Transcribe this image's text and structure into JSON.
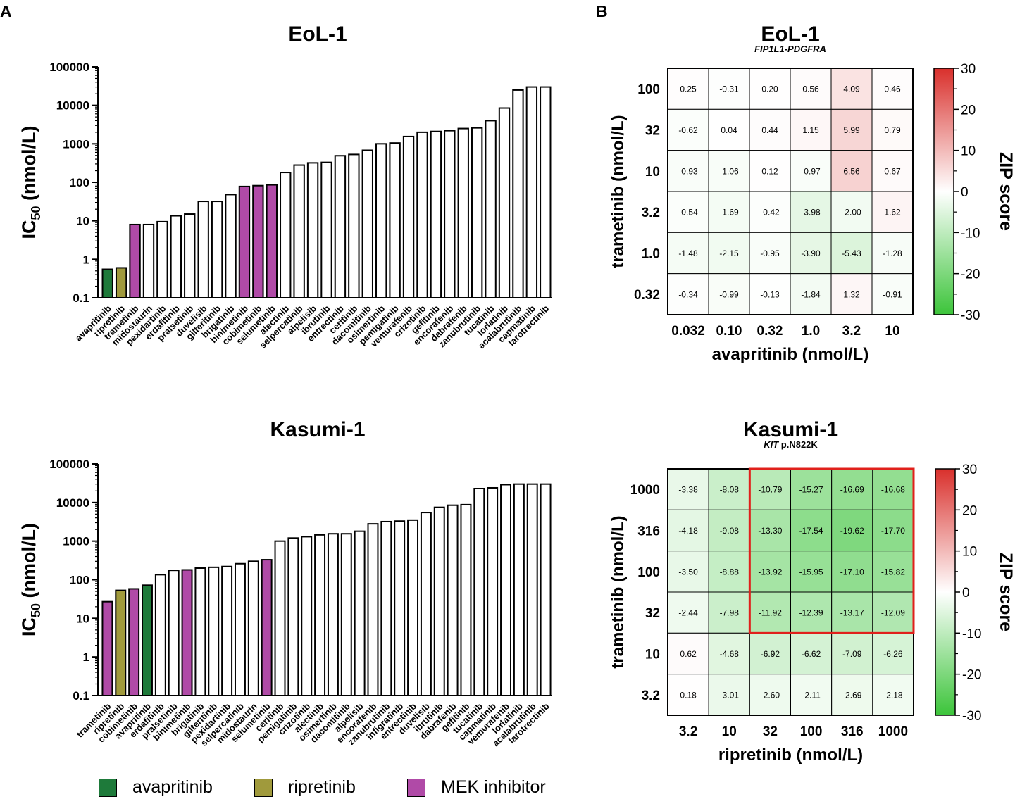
{
  "panel_labels": {
    "a": "A",
    "b": "B"
  },
  "colors": {
    "avapritinib": "#1e7a3a",
    "ripretinib": "#a09a3c",
    "mek": "#b04aa7",
    "other": "#ffffff",
    "highlight": "#e0201b"
  },
  "legend": [
    {
      "label": "avapritinib",
      "color": "#1e7a3a"
    },
    {
      "label": "ripretinib",
      "color": "#a09a3c"
    },
    {
      "label": "MEK inhibitor",
      "color": "#b04aa7"
    }
  ],
  "colorbar": {
    "title": "ZIP score",
    "ticks": [
      "30",
      "20",
      "10",
      "0",
      "-10",
      "-20",
      "-30"
    ],
    "range": [
      -30,
      30
    ]
  },
  "chart_data": [
    {
      "id": "eol1-bar",
      "type": "bar",
      "title": "EoL-1",
      "ylabel": "IC50 (nmol/L)",
      "ylabel_main": "IC",
      "ylabel_sub": "50",
      "ylabel_rest": " (nmol/L)",
      "yscale": "log",
      "ylim": [
        0.1,
        100000
      ],
      "yticks": [
        "0.1",
        "1",
        "10",
        "100",
        "1000",
        "10000",
        "100000"
      ],
      "categories": [
        "avapritinib",
        "ripretinib",
        "trametinib",
        "midostaurin",
        "pexidartinib",
        "erdafitinib",
        "pralsetinib",
        "duvelisib",
        "gilteritinib",
        "brigatinib",
        "binimetinib",
        "cobimetinib",
        "selumetinib",
        "alectinib",
        "selpercatinib",
        "alpelisib",
        "ibrutinib",
        "entrectinib",
        "ceritinib",
        "dacomitinib",
        "osimertinib",
        "pemigatinib",
        "vemurafenib",
        "crizotinib",
        "gefitinib",
        "encorafenib",
        "dabrafenib",
        "zanubrutinib",
        "tucatinib",
        "lorlatinib",
        "acalabrutinib",
        "capmatinib",
        "larotrectinib"
      ],
      "values": [
        0.55,
        0.6,
        8,
        8,
        9.5,
        13.5,
        15,
        32,
        32,
        48,
        78,
        82,
        86,
        180,
        280,
        320,
        330,
        490,
        530,
        680,
        1000,
        1050,
        1550,
        2000,
        2100,
        2200,
        2500,
        2600,
        4000,
        8500,
        25000,
        30000,
        30000
      ],
      "groups": [
        "avapritinib",
        "ripretinib",
        "mek",
        "other",
        "other",
        "other",
        "other",
        "other",
        "other",
        "other",
        "mek",
        "mek",
        "mek",
        "other",
        "other",
        "other",
        "other",
        "other",
        "other",
        "other",
        "other",
        "other",
        "other",
        "other",
        "other",
        "other",
        "other",
        "other",
        "other",
        "other",
        "other",
        "other",
        "other"
      ]
    },
    {
      "id": "kasumi-bar",
      "type": "bar",
      "title": "Kasumi-1",
      "ylabel": "IC50 (nmol/L)",
      "ylabel_main": "IC",
      "ylabel_sub": "50",
      "ylabel_rest": " (nmol/L)",
      "yscale": "log",
      "ylim": [
        0.1,
        100000
      ],
      "yticks": [
        "0.1",
        "1",
        "10",
        "100",
        "1000",
        "10000",
        "100000"
      ],
      "categories": [
        "trametinib",
        "ripretinib",
        "cobimetinib",
        "avapritinib",
        "erdafitinib",
        "pralsetinib",
        "binimetinib",
        "brigatinib",
        "gilteritinib",
        "pexidartinib",
        "selpercatinib",
        "midostaurin",
        "selumetinib",
        "ceritinib",
        "pemigatinib",
        "crizotinib",
        "alectinib",
        "osimertinib",
        "dacomitinib",
        "alpelisib",
        "encorafenib",
        "zanubrutinib",
        "infigratinib",
        "entrectinib",
        "duvelisib",
        "ibrutinib",
        "dabrafenib",
        "gefitinib",
        "tucatinib",
        "capmatinib",
        "vemurafenib",
        "lorlatinib",
        "acalabrutinib",
        "larotrectinib"
      ],
      "values": [
        27,
        53,
        58,
        72,
        135,
        175,
        180,
        200,
        210,
        220,
        260,
        300,
        330,
        1000,
        1200,
        1300,
        1450,
        1550,
        1550,
        1800,
        2800,
        3200,
        3300,
        3500,
        5500,
        7500,
        8500,
        8800,
        23000,
        24000,
        29000,
        30000,
        30000,
        30000
      ],
      "groups": [
        "mek",
        "ripretinib",
        "mek",
        "avapritinib",
        "other",
        "other",
        "mek",
        "other",
        "other",
        "other",
        "other",
        "other",
        "mek",
        "other",
        "other",
        "other",
        "other",
        "other",
        "other",
        "other",
        "other",
        "other",
        "other",
        "other",
        "other",
        "other",
        "other",
        "other",
        "other",
        "other",
        "other",
        "other",
        "other",
        "other"
      ]
    },
    {
      "id": "eol1-heat",
      "type": "heatmap",
      "title": "EoL-1",
      "subtitle": "FIP1L1-PDGFRA",
      "subtitle_italic": "FIP1L1-PDGFRA",
      "subtitle_rest": "",
      "xlabel": "avapritinib (nmol/L)",
      "ylabel": "trametinib (nmol/L)",
      "xticks": [
        "0.032",
        "0.10",
        "0.32",
        "1.0",
        "3.2",
        "10"
      ],
      "yticks": [
        "100",
        "32",
        "10",
        "3.2",
        "1.0",
        "0.32"
      ],
      "values": [
        [
          0.25,
          -0.31,
          0.2,
          0.56,
          4.09,
          0.46
        ],
        [
          -0.62,
          0.04,
          0.44,
          1.15,
          5.99,
          0.79
        ],
        [
          -0.93,
          -1.06,
          0.12,
          -0.97,
          6.56,
          0.67
        ],
        [
          -0.54,
          -1.69,
          -0.42,
          -3.98,
          -2.0,
          1.62
        ],
        [
          -1.48,
          -2.15,
          -0.95,
          -3.9,
          -5.43,
          -1.28
        ],
        [
          -0.34,
          -0.99,
          -0.13,
          -1.84,
          1.32,
          -0.91
        ]
      ],
      "labels": [
        [
          "0.25",
          "-0.31",
          "0.20",
          "0.56",
          "4.09",
          "0.46"
        ],
        [
          "-0.62",
          "0.04",
          "0.44",
          "1.15",
          "5.99",
          "0.79"
        ],
        [
          "-0.93",
          "-1.06",
          "0.12",
          "-0.97",
          "6.56",
          "0.67"
        ],
        [
          "-0.54",
          "-1.69",
          "-0.42",
          "-3.98",
          "-2.00",
          "1.62"
        ],
        [
          "-1.48",
          "-2.15",
          "-0.95",
          "-3.90",
          "-5.43",
          "-1.28"
        ],
        [
          "-0.34",
          "-0.99",
          "-0.13",
          "-1.84",
          "1.32",
          "-0.91"
        ]
      ],
      "highlight": null
    },
    {
      "id": "kasumi-heat",
      "type": "heatmap",
      "title": "Kasumi-1",
      "subtitle": "KIT p.N822K",
      "subtitle_italic": "KIT",
      "subtitle_rest": " p.N822K",
      "xlabel": "ripretinib (nmol/L)",
      "ylabel": "trametinib (nmol/L)",
      "xticks": [
        "3.2",
        "10",
        "32",
        "100",
        "316",
        "1000"
      ],
      "yticks": [
        "1000",
        "316",
        "100",
        "32",
        "10",
        "3.2"
      ],
      "values": [
        [
          -3.38,
          -8.08,
          -10.79,
          -15.27,
          -16.69,
          -16.68
        ],
        [
          -4.18,
          -9.08,
          -13.3,
          -17.54,
          -19.62,
          -17.7
        ],
        [
          -3.5,
          -8.88,
          -13.92,
          -15.95,
          -17.1,
          -15.82
        ],
        [
          -2.44,
          -7.98,
          -11.92,
          -12.39,
          -13.17,
          -12.09
        ],
        [
          0.62,
          -4.68,
          -6.92,
          -6.62,
          -7.09,
          -6.26
        ],
        [
          0.18,
          -3.01,
          -2.6,
          -2.11,
          -2.69,
          -2.18
        ]
      ],
      "labels": [
        [
          "-3.38",
          "-8.08",
          "-10.79",
          "-15.27",
          "-16.69",
          "-16.68"
        ],
        [
          "-4.18",
          "-9.08",
          "-13.30",
          "-17.54",
          "-19.62",
          "-17.70"
        ],
        [
          "-3.50",
          "-8.88",
          "-13.92",
          "-15.95",
          "-17.10",
          "-15.82"
        ],
        [
          "-2.44",
          "-7.98",
          "-11.92",
          "-12.39",
          "-13.17",
          "-12.09"
        ],
        [
          "0.62",
          "-4.68",
          "-6.92",
          "-6.62",
          "-7.09",
          "-6.26"
        ],
        [
          "0.18",
          "-3.01",
          "-2.60",
          "-2.11",
          "-2.69",
          "-2.18"
        ]
      ],
      "highlight": {
        "rows": [
          0,
          3
        ],
        "cols": [
          2,
          5
        ]
      }
    }
  ]
}
